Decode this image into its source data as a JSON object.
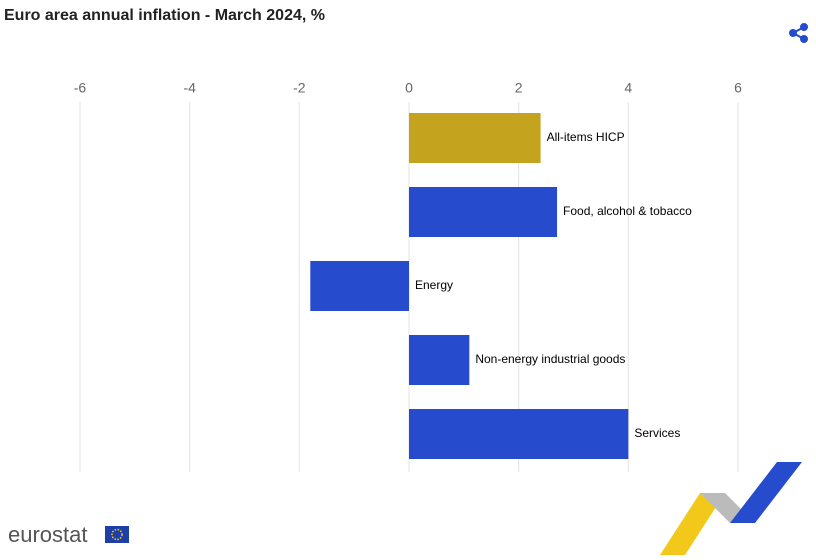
{
  "chart_data": {
    "type": "hbar",
    "title": "Euro area annual inflation - March  2024, %",
    "categories": [
      "All-items HICP",
      "Food, alcohol & tobacco",
      "Energy",
      "Non-energy industrial goods",
      "Services"
    ],
    "values": [
      2.4,
      2.7,
      -1.8,
      1.1,
      4.0
    ],
    "colors": [
      "#c4a31f",
      "#264bcc",
      "#264bcc",
      "#264bcc",
      "#264bcc"
    ],
    "xlim": [
      -6,
      6
    ],
    "xticks": [
      -6,
      -4,
      -2,
      0,
      2,
      4,
      6
    ],
    "grid": true
  },
  "footer": {
    "brand": "eurostat"
  }
}
